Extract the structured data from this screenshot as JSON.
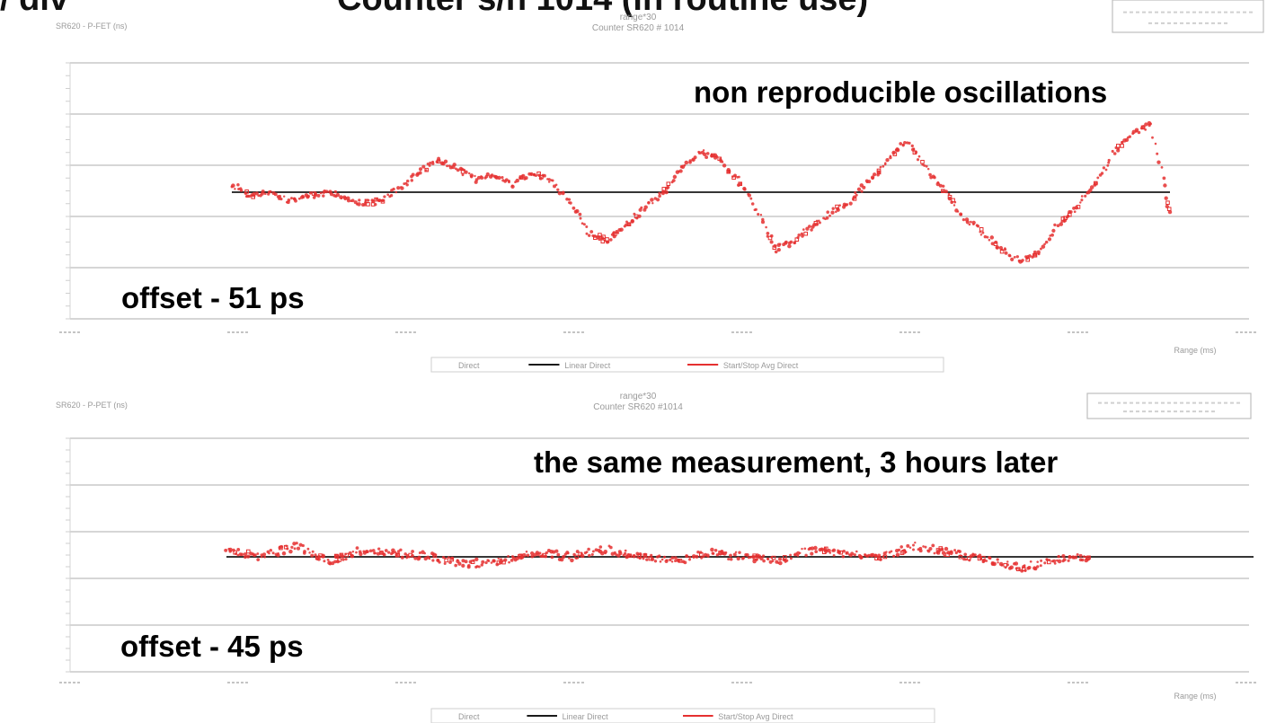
{
  "header": {
    "left_fragment": "/ div",
    "title_fragment": "Counter s/n 1014 (in routine use)"
  },
  "annotations": {
    "oscillations": "non reproducible oscillations",
    "offset1": "offset - 51 ps",
    "same_measurement": "the same measurement, 3 hours later",
    "offset2": "offset - 45 ps"
  },
  "colors": {
    "series": "#e53030",
    "reference": "#1a1a1a",
    "grid": "#bdbdbd",
    "faint_text": "#9a9a9a"
  },
  "chart_data": [
    {
      "type": "scatter",
      "title": "range*30",
      "subtitle": "Counter SR620 # 1014",
      "ylabel": "SR620 - P-FET (ns)",
      "xlabel": "Range (ms)",
      "legend": [
        "Direct",
        "Linear Direct",
        "Start/Stop Avg Direct"
      ],
      "legend_position": "bottom",
      "grid": true,
      "reference_level": 0,
      "ylim": [
        -60,
        60
      ],
      "series": [
        {
          "name": "Start/Stop Avg Direct",
          "x": [
            0.0,
            0.02,
            0.04,
            0.06,
            0.08,
            0.1,
            0.12,
            0.14,
            0.16,
            0.18,
            0.2,
            0.22,
            0.24,
            0.26,
            0.28,
            0.3,
            0.32,
            0.34,
            0.36,
            0.38,
            0.4,
            0.42,
            0.44,
            0.46,
            0.48,
            0.5,
            0.52,
            0.54,
            0.56,
            0.58,
            0.6,
            0.62,
            0.64,
            0.66,
            0.68,
            0.7,
            0.72,
            0.74,
            0.76,
            0.78,
            0.8,
            0.82,
            0.84,
            0.86,
            0.88,
            0.9,
            0.92,
            0.94,
            0.96,
            0.98,
            1.0
          ],
          "y": [
            2,
            -1,
            0,
            -2,
            -1,
            0,
            -1,
            -3,
            -2,
            1,
            5,
            8,
            6,
            3,
            4,
            2,
            5,
            3,
            -2,
            -10,
            -12,
            -8,
            -4,
            0,
            6,
            10,
            8,
            3,
            -5,
            -14,
            -12,
            -8,
            -5,
            -2,
            3,
            8,
            13,
            6,
            0,
            -6,
            -10,
            -14,
            -17,
            -15,
            -8,
            -4,
            2,
            10,
            14,
            17,
            -5
          ],
          "markers": 520
        }
      ]
    },
    {
      "type": "scatter",
      "title": "range*30",
      "subtitle": "Counter SR620 #1014",
      "ylabel": "SR620 - P-PET (ns)",
      "xlabel": "Range (ms)",
      "legend": [
        "Direct",
        "Linear Direct",
        "Start/Stop Avg Direct"
      ],
      "legend_position": "bottom",
      "grid": true,
      "reference_level": 0,
      "ylim": [
        -60,
        60
      ],
      "series": [
        {
          "name": "Start/Stop Avg Direct",
          "x": [
            0.0,
            0.04,
            0.08,
            0.12,
            0.16,
            0.2,
            0.24,
            0.28,
            0.32,
            0.36,
            0.4,
            0.44,
            0.48,
            0.52,
            0.56,
            0.6,
            0.64,
            0.68,
            0.72,
            0.76,
            0.8,
            0.84,
            0.88,
            0.92,
            0.96,
            1.0
          ],
          "y": [
            2,
            0,
            3,
            -1,
            2,
            1,
            0,
            -2,
            -1,
            1,
            0,
            2,
            0,
            -1,
            1,
            0,
            -1,
            2,
            1,
            0,
            3,
            1,
            -1,
            -3,
            -1,
            0
          ],
          "markers": 480
        }
      ]
    }
  ]
}
